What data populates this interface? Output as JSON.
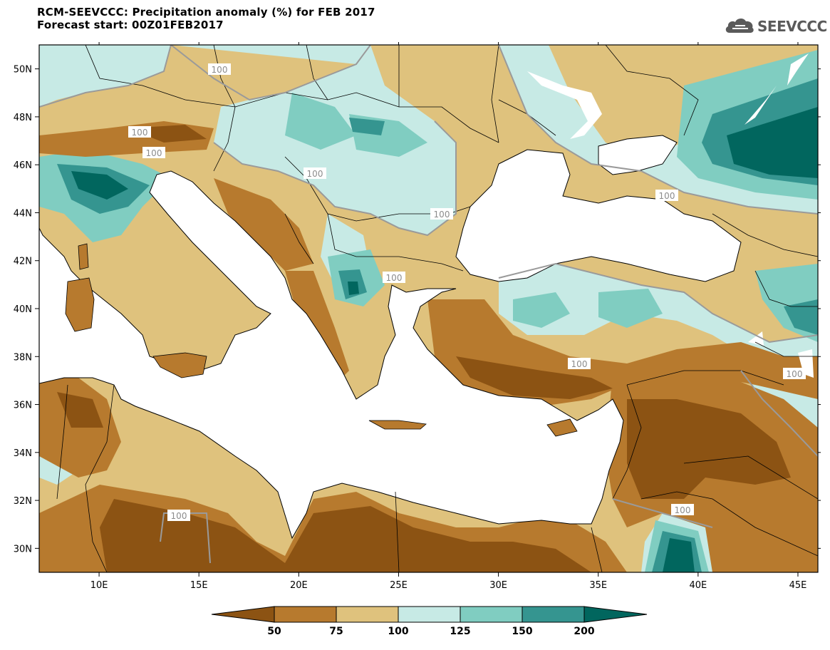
{
  "header": {
    "title_line1": "RCM-SEEVCCC: Precipitation anomaly (%) for FEB 2017",
    "title_line2": "Forecast start: 00Z01FEB2017"
  },
  "logo": {
    "text": "SEEVCCC",
    "icon": "cloud-icon",
    "color": "#5a5a5a"
  },
  "map": {
    "lon_range": [
      7,
      46
    ],
    "lat_range": [
      29,
      51
    ],
    "lat_ticks": [
      "50N",
      "48N",
      "46N",
      "44N",
      "42N",
      "40N",
      "38N",
      "36N",
      "34N",
      "32N",
      "30N"
    ],
    "lon_ticks": [
      "10E",
      "15E",
      "20E",
      "25E",
      "30E",
      "35E",
      "40E",
      "45E"
    ],
    "contour_label": "100"
  },
  "colorbar": {
    "ticks": [
      "50",
      "75",
      "100",
      "125",
      "150",
      "200"
    ],
    "colors": [
      "#8c5313",
      "#b77a2e",
      "#dfc27d",
      "#c7eae5",
      "#80cdc1",
      "#359590",
      "#01665e"
    ]
  }
}
